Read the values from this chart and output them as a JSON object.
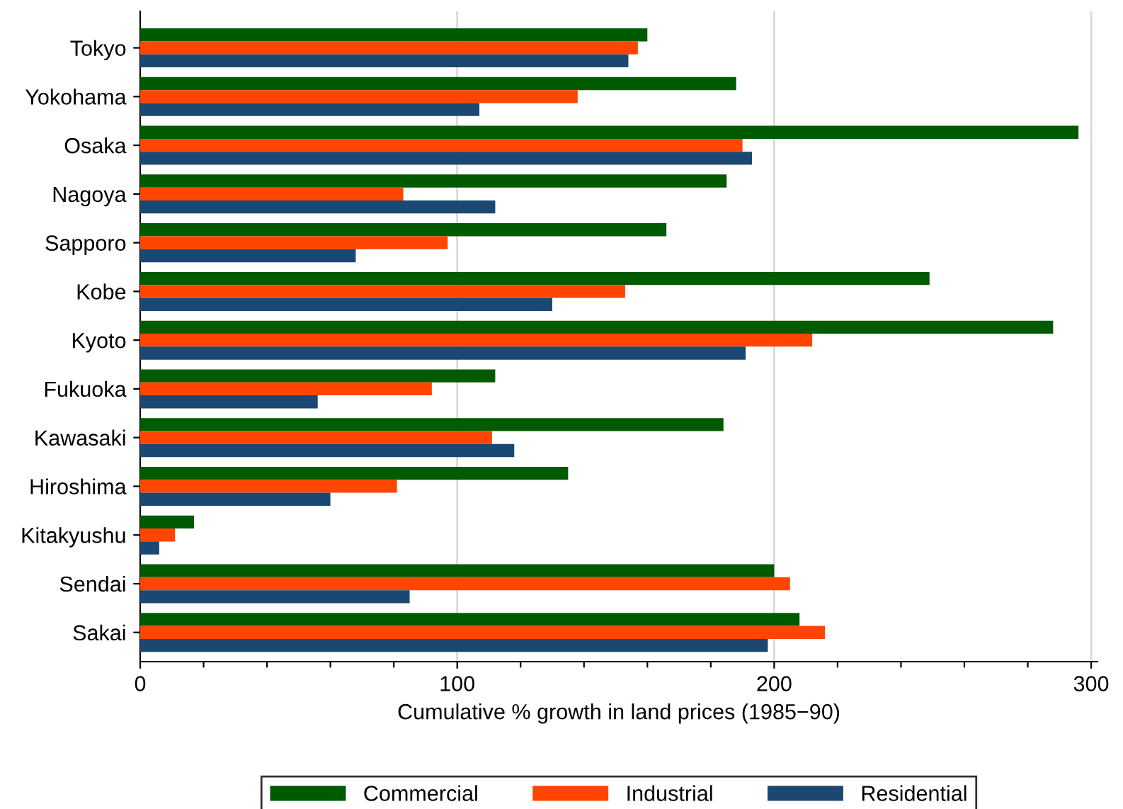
{
  "chart_data": {
    "type": "bar",
    "orientation": "horizontal",
    "xlabel": "Cumulative % growth in land prices (1985−90)",
    "categories": [
      "Tokyo",
      "Yokohama",
      "Osaka",
      "Nagoya",
      "Sapporo",
      "Kobe",
      "Kyoto",
      "Fukuoka",
      "Kawasaki",
      "Hiroshima",
      "Kitakyushu",
      "Sendai",
      "Sakai"
    ],
    "series": [
      {
        "name": "Commercial",
        "color": "#005a00",
        "values": [
          160,
          188,
          296,
          185,
          166,
          249,
          288,
          112,
          184,
          135,
          17,
          200,
          208
        ]
      },
      {
        "name": "Industrial",
        "color": "#ff4500",
        "values": [
          157,
          138,
          190,
          83,
          97,
          153,
          212,
          92,
          111,
          81,
          11,
          205,
          216
        ]
      },
      {
        "name": "Residential",
        "color": "#1b4872",
        "values": [
          154,
          107,
          193,
          112,
          68,
          130,
          191,
          56,
          118,
          60,
          6,
          85,
          198
        ]
      }
    ],
    "xlim": [
      0,
      302
    ],
    "xticks": [
      0,
      {
        "value": 20,
        "label": null
      },
      {
        "value": 40,
        "label": null
      },
      {
        "value": 60,
        "label": null
      },
      {
        "value": 80,
        "label": null
      },
      100,
      {
        "value": 120,
        "label": null
      },
      {
        "value": 140,
        "label": null
      },
      {
        "value": 160,
        "label": null
      },
      {
        "value": 180,
        "label": null
      },
      200,
      {
        "value": 220,
        "label": null
      },
      {
        "value": 240,
        "label": null
      },
      {
        "value": 260,
        "label": null
      },
      {
        "value": 280,
        "label": null
      },
      300
    ],
    "grid": "x",
    "legend": "bottom"
  }
}
